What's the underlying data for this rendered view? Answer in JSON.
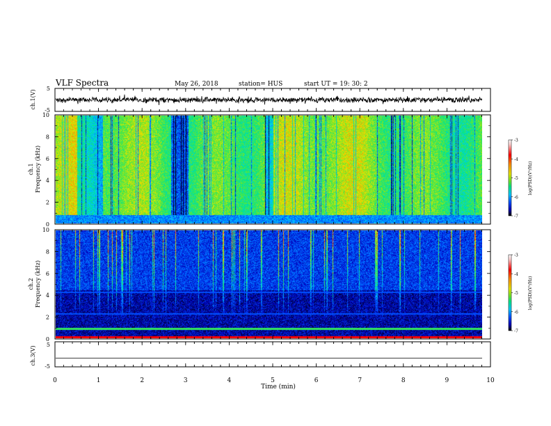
{
  "header": {
    "title": "VLF Spectra",
    "date": "May 26, 2018",
    "station": "station= HUS",
    "start": "start UT = 19: 30: 2"
  },
  "chart_data": [
    {
      "id": "ch1-waveform",
      "type": "line",
      "ylabel": "ch.1(V)",
      "ylim": [
        -5,
        5
      ],
      "yticks": [
        "5",
        "-5"
      ],
      "xlim": [
        0,
        10
      ],
      "description_of_signal": "noisy waveform centered near 0 V"
    },
    {
      "id": "ch1-spectrogram",
      "type": "heatmap",
      "ylabel": "ch.1\nFrequency (kHz)",
      "ylabel_lines": [
        "ch.1",
        "Frequency (kHz)"
      ],
      "ylim": [
        0,
        10
      ],
      "yticks": [
        "0",
        "2",
        "4",
        "6",
        "8",
        "10"
      ],
      "xlim": [
        0,
        9.85
      ],
      "colorbar": {
        "label": "log(PSD)(V²/Hz)",
        "range": [
          -7,
          -3
        ],
        "ticks": [
          "-3",
          "-4",
          "-5",
          "-6",
          "-7"
        ]
      },
      "dominant_level": -5.0
    },
    {
      "id": "ch2-spectrogram",
      "type": "heatmap",
      "ylabel": "ch.2\nFrequency (kHz)",
      "ylabel_lines": [
        "ch.2",
        "Frequency (kHz)"
      ],
      "ylim": [
        0,
        10
      ],
      "yticks": [
        "0",
        "2",
        "4",
        "6",
        "8",
        "10"
      ],
      "xlim": [
        0,
        9.85
      ],
      "colorbar": {
        "label": "log(PSD)(V²/Hz)",
        "range": [
          -7,
          -3
        ],
        "ticks": [
          "-3",
          "-4",
          "-5",
          "-6",
          "-7"
        ]
      },
      "dominant_level": -6.6,
      "horizontal_lines_khz": [
        0.9,
        2.3,
        4.3
      ]
    },
    {
      "id": "ch3-waveform",
      "type": "line",
      "ylabel": "ch.3(V)",
      "ylim": [
        -5,
        5
      ],
      "yticks": [
        "5",
        "-5"
      ],
      "xlim": [
        0,
        9.85
      ],
      "constant_value": -1.5
    }
  ],
  "xaxis": {
    "label": "Time (min)",
    "range": [
      0,
      10
    ],
    "ticks": [
      "0",
      "1",
      "2",
      "3",
      "4",
      "5",
      "6",
      "7",
      "8",
      "9",
      "10"
    ]
  },
  "colors": {
    "axis": "#000000",
    "colormap": [
      "#000000",
      "#0000b4",
      "#0050ff",
      "#00c8ff",
      "#00e68c",
      "#64e632",
      "#e6e600",
      "#ff8c00",
      "#ff0000",
      "#ffd0d0",
      "#ffffff"
    ]
  }
}
